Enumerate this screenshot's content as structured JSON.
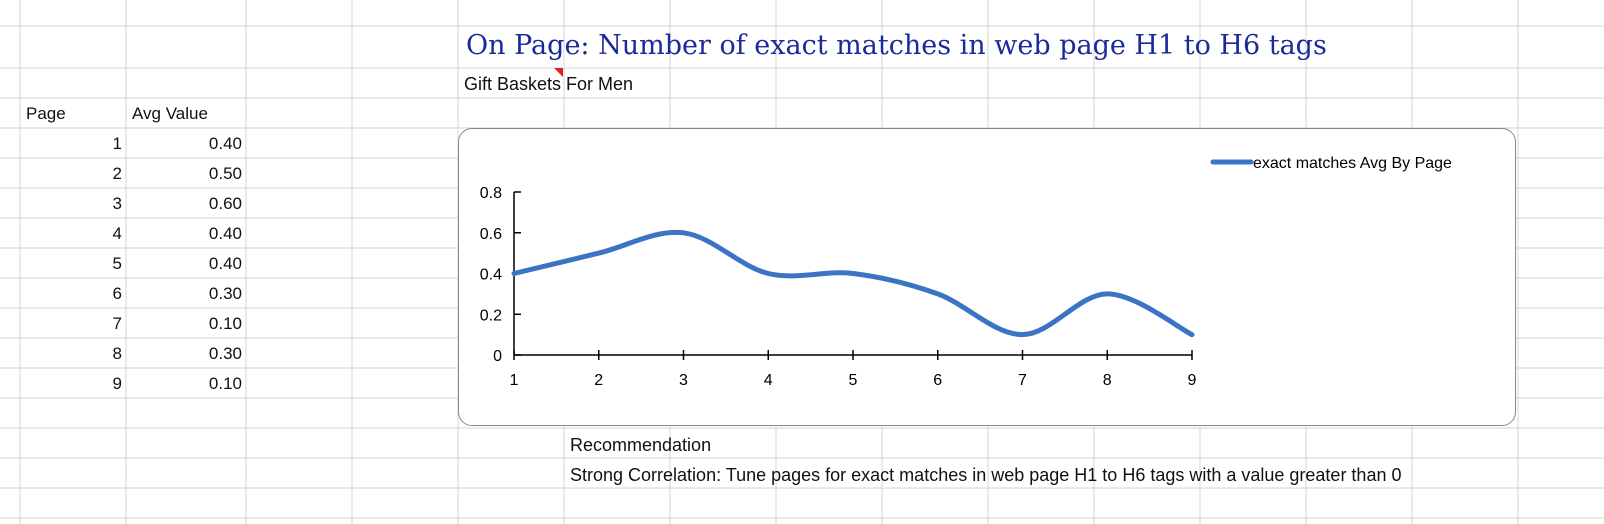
{
  "sheet": {
    "title": "On Page: Number of exact matches in web page H1 to H6 tags",
    "subtitle": "Gift Baskets For Men",
    "table": {
      "headers": [
        "Page",
        "Avg Value"
      ],
      "rows": [
        {
          "page": "1",
          "value": "0.40"
        },
        {
          "page": "2",
          "value": "0.50"
        },
        {
          "page": "3",
          "value": "0.60"
        },
        {
          "page": "4",
          "value": "0.40"
        },
        {
          "page": "5",
          "value": "0.40"
        },
        {
          "page": "6",
          "value": "0.30"
        },
        {
          "page": "7",
          "value": "0.10"
        },
        {
          "page": "8",
          "value": "0.30"
        },
        {
          "page": "9",
          "value": "0.10"
        }
      ]
    },
    "recommendation_label": "Recommendation",
    "recommendation_text": "Strong Correlation: Tune pages for exact matches in web page H1 to H6 tags with a value greater than 0"
  },
  "chart_data": {
    "type": "line",
    "x": [
      1,
      2,
      3,
      4,
      5,
      6,
      7,
      8,
      9
    ],
    "series": [
      {
        "name": "exact matches Avg By Page",
        "values": [
          0.4,
          0.5,
          0.6,
          0.4,
          0.4,
          0.3,
          0.1,
          0.3,
          0.1
        ],
        "color": "#3b74c4"
      }
    ],
    "ylim": [
      0,
      0.8
    ],
    "yticks": [
      "0",
      "0.2",
      "0.4",
      "0.6",
      "0.8"
    ],
    "xticks": [
      "1",
      "2",
      "3",
      "4",
      "5",
      "6",
      "7",
      "8",
      "9"
    ],
    "smooth": true,
    "grid": false,
    "legend": "top-right"
  },
  "colors": {
    "gridline": "#d4d4d4",
    "title": "#1a2a9a",
    "comment_marker": "#e02020"
  }
}
